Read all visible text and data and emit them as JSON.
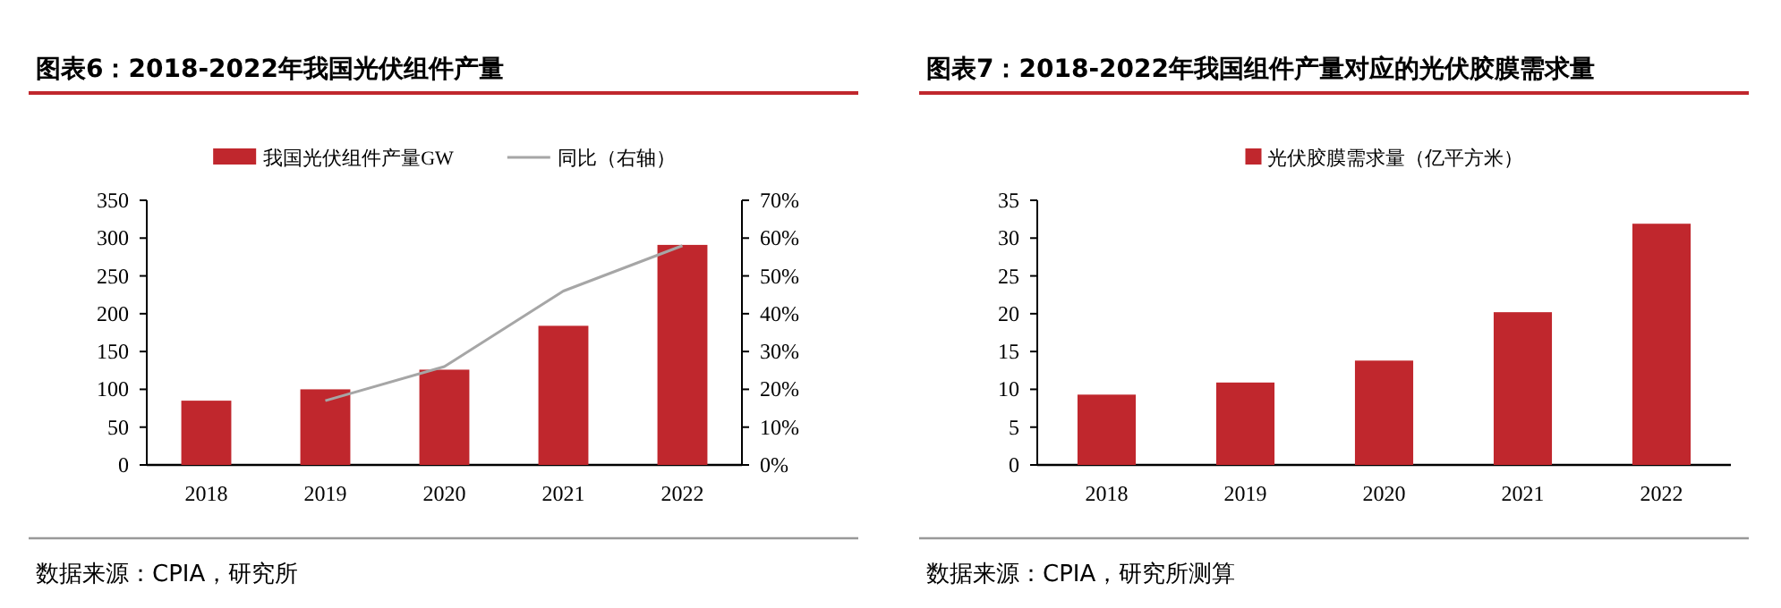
{
  "chart_data": [
    {
      "type": "bar",
      "title": "图表6：2018-2022年我国光伏组件产量",
      "categories": [
        "2018",
        "2019",
        "2020",
        "2021",
        "2022"
      ],
      "series": [
        {
          "name": "我国光伏组件产量GW",
          "color": "#c0272d",
          "values": [
            85,
            100,
            126,
            184,
            291
          ]
        },
        {
          "name": "同比（右轴）",
          "type": "line",
          "axis": "y2",
          "color": "#a6a6a6",
          "values": [
            null,
            17,
            26,
            46,
            58
          ]
        }
      ],
      "ylim": [
        0,
        350
      ],
      "yticks": [
        0,
        50,
        100,
        150,
        200,
        250,
        300,
        350
      ],
      "y2lim": [
        0,
        70
      ],
      "y2ticks": [
        {
          "value": 0,
          "label": "0%"
        },
        {
          "value": 10,
          "label": "10%"
        },
        {
          "value": 20,
          "label": "20%"
        },
        {
          "value": 30,
          "label": "30%"
        },
        {
          "value": 40,
          "label": "40%"
        },
        {
          "value": 50,
          "label": "50%"
        },
        {
          "value": 60,
          "label": "60%"
        },
        {
          "value": 70,
          "label": "70%"
        }
      ],
      "legend": "top",
      "annotations": [
        "数据来源：CPIA，研究所"
      ]
    },
    {
      "type": "bar",
      "title": "图表7：2018-2022年我国组件产量对应的光伏胶膜需求量",
      "categories": [
        "2018",
        "2019",
        "2020",
        "2021",
        "2022"
      ],
      "series": [
        {
          "name": "光伏胶膜需求量（亿平方米）",
          "color": "#c0272d",
          "values": [
            9.3,
            10.9,
            13.8,
            20.2,
            31.9
          ]
        }
      ],
      "ylim": [
        0,
        35
      ],
      "yticks": [
        0,
        5,
        10,
        15,
        20,
        25,
        30,
        35
      ],
      "legend": "top",
      "annotations": [
        "数据来源：CPIA，研究所测算"
      ]
    }
  ]
}
